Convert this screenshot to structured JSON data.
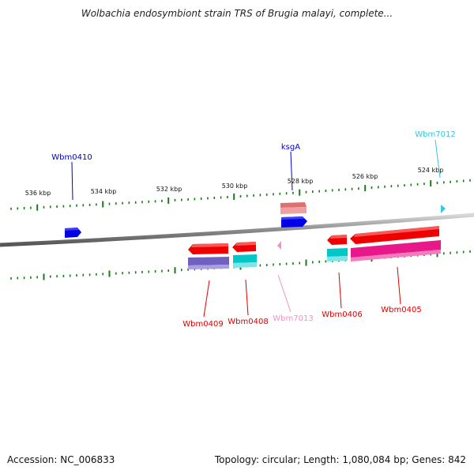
{
  "title": "Wolbachia endosymbiont strain TRS of Brugia malayi, complete...",
  "footer": {
    "accession": "Accession: NC_006833",
    "topology": "Topology: circular; Length: 1,080,084 bp; Genes: 842"
  },
  "scale_labels": [
    "536 kbp",
    "534 kbp",
    "532 kbp",
    "530 kbp",
    "528 kbp",
    "526 kbp",
    "524 kbp"
  ],
  "genes": [
    {
      "name": "Wbm0410",
      "color": "#0000cc"
    },
    {
      "name": "ksgA",
      "color": "#0000cc"
    },
    {
      "name": "Wbm7012",
      "color": "#33c6e6"
    },
    {
      "name": "Wbm0409",
      "color": "#dd0000"
    },
    {
      "name": "Wbm0408",
      "color": "#dd0000"
    },
    {
      "name": "Wbm7013",
      "color": "#f093c0"
    },
    {
      "name": "Wbm0406",
      "color": "#dd0000"
    },
    {
      "name": "Wbm0405",
      "color": "#dd0000"
    }
  ],
  "colors": {
    "backbone": "#8c8c8c",
    "tick": "#1a7a1a",
    "forward_gene": "#0000e6",
    "forward_rna": "#e07070",
    "reverse_gene": "#ee0000",
    "reverse_purple": "#7060c0",
    "reverse_cyan": "#00c8c8",
    "reverse_magenta": "#e8188a",
    "small_cyan": "#33c6e6",
    "small_pink": "#f093c0"
  }
}
